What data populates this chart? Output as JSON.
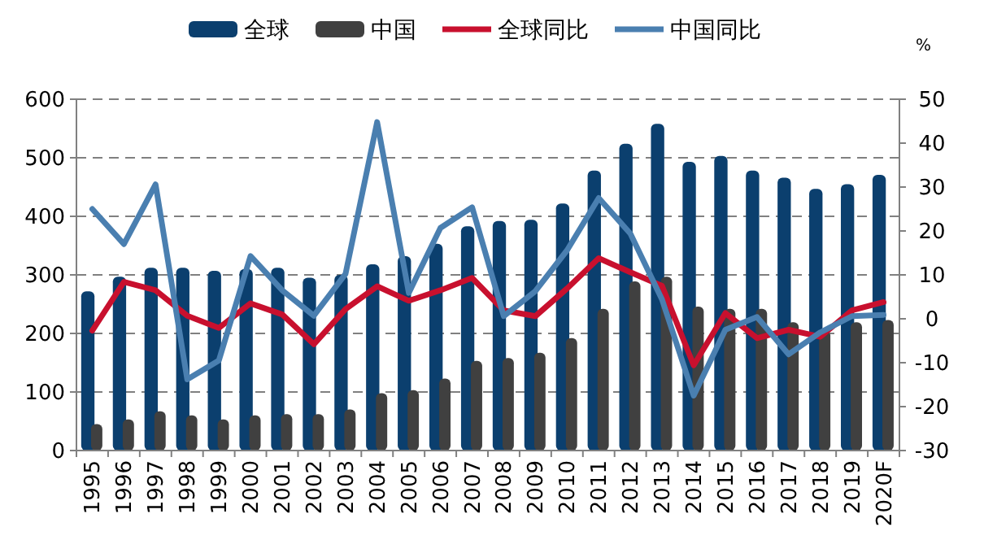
{
  "chart_data": {
    "type": "bar",
    "categories": [
      "1995",
      "1996",
      "1997",
      "1998",
      "1999",
      "2000",
      "2001",
      "2002",
      "2003",
      "2004",
      "2005",
      "2006",
      "2007",
      "2008",
      "2009",
      "2010",
      "2011",
      "2012",
      "2013",
      "2014",
      "2015",
      "2016",
      "2017",
      "2018",
      "2019",
      "2020F"
    ],
    "series": [
      {
        "name": "全球",
        "color": "#0b3f6e",
        "values": [
          272,
          297,
          312,
          312,
          307,
          310,
          312,
          295,
          300,
          318,
          332,
          353,
          383,
          392,
          394,
          422,
          478,
          524,
          558,
          493,
          503,
          478,
          466,
          447,
          455,
          471
        ]
      },
      {
        "name": "中国",
        "color": "#404040",
        "values": [
          45,
          53,
          67,
          60,
          53,
          60,
          62,
          62,
          70,
          98,
          103,
          123,
          153,
          158,
          167,
          192,
          242,
          289,
          297,
          246,
          242,
          242,
          219,
          205,
          219,
          223
        ]
      },
      {
        "name": "全球同比",
        "type": "line",
        "axis": "y2",
        "color": "#c8102e",
        "values": [
          -2.7,
          8.4,
          6.5,
          0.7,
          -2.1,
          3.5,
          1.0,
          -5.8,
          2.2,
          7.4,
          4.1,
          6.5,
          9.3,
          1.9,
          0.6,
          6.9,
          13.8,
          10.6,
          7.5,
          -10.6,
          1.3,
          -4.4,
          -2.5,
          -4.1,
          1.9,
          3.8
        ]
      },
      {
        "name": "中国同比",
        "type": "line",
        "axis": "y2",
        "color": "#4a7fb0",
        "values": [
          25,
          17,
          30.6,
          -13.8,
          -9.5,
          14.3,
          6.5,
          0.7,
          10.2,
          44.8,
          5.9,
          20.7,
          25.4,
          0.6,
          6.3,
          15.6,
          27.5,
          19.4,
          4.4,
          -17.5,
          -2.5,
          0.4,
          -8.1,
          -3.1,
          0.6,
          0.9
        ]
      }
    ],
    "ylim": [
      0,
      600
    ],
    "yticks": [
      0,
      100,
      200,
      300,
      400,
      500,
      600
    ],
    "y2lim": [
      -30,
      50
    ],
    "y2ticks": [
      -30,
      -20,
      -10,
      0,
      10,
      20,
      30,
      40,
      50
    ],
    "y2label": "%",
    "grid": "y",
    "legend": "top",
    "marker": "none"
  }
}
